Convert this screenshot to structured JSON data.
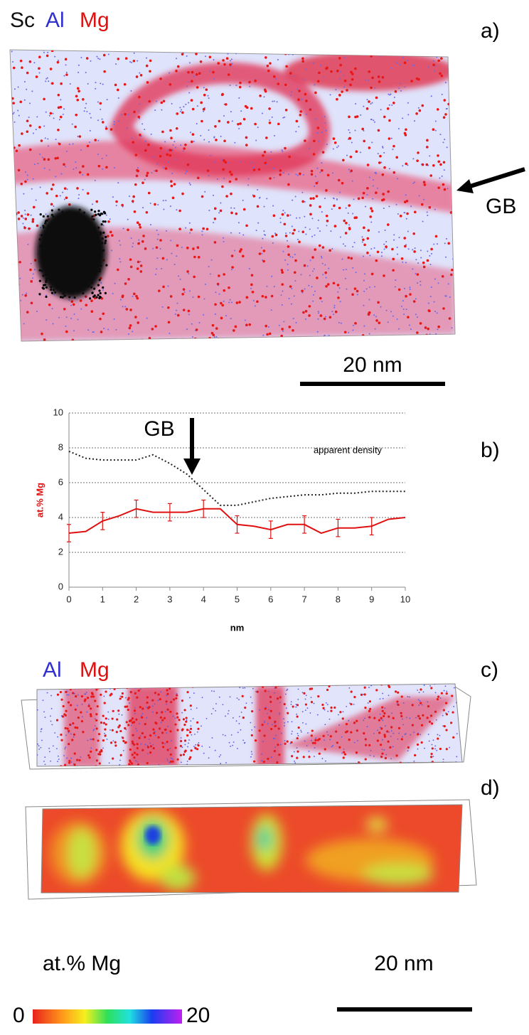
{
  "figure": {
    "panel_a": {
      "label": "a)",
      "legend": [
        "Sc",
        "Al",
        "Mg"
      ],
      "marker": "GB",
      "scale": "20 nm"
    },
    "panel_c": {
      "label": "c)",
      "legend": [
        "Al",
        "Mg"
      ]
    },
    "panel_d": {
      "label": "d)"
    },
    "colorbar": {
      "title": "at.% Mg",
      "min": "0",
      "max": "20",
      "scale": "20 nm"
    }
  },
  "chart_data": {
    "type": "line",
    "label": "b)",
    "annotation": "GB",
    "y_label": "at.% Mg",
    "x_label": "nm",
    "x": [
      0,
      0.5,
      1,
      1.5,
      2,
      2.5,
      3,
      3.5,
      4,
      4.5,
      5,
      5.5,
      6,
      6.5,
      7,
      7.5,
      8,
      8.5,
      9,
      9.5,
      10
    ],
    "series": [
      {
        "color": "#e01010",
        "style": "solid",
        "values": [
          3.1,
          3.2,
          3.8,
          4.1,
          4.5,
          4.3,
          4.3,
          4.3,
          4.5,
          4.5,
          3.6,
          3.5,
          3.3,
          3.6,
          3.6,
          3.1,
          3.4,
          3.4,
          3.5,
          3.9,
          4.0
        ],
        "errors": [
          0.5,
          null,
          0.5,
          null,
          0.5,
          null,
          0.5,
          null,
          0.5,
          null,
          0.5,
          null,
          0.5,
          null,
          0.5,
          null,
          0.5,
          null,
          0.5,
          null,
          null
        ]
      },
      {
        "name": "apparent density",
        "color": "#222222",
        "style": "dotted",
        "values": [
          7.8,
          7.4,
          7.3,
          7.3,
          7.3,
          7.6,
          7.1,
          6.5,
          5.6,
          4.7,
          4.7,
          4.9,
          5.1,
          5.2,
          5.3,
          5.3,
          5.4,
          5.4,
          5.5,
          5.5,
          5.5
        ]
      }
    ],
    "xlim": [
      0,
      10
    ],
    "ylim": [
      0,
      10
    ],
    "xticks": [
      0,
      1,
      2,
      3,
      4,
      5,
      6,
      7,
      8,
      9,
      10
    ],
    "yticks": [
      0,
      2,
      4,
      6,
      8,
      10
    ],
    "grid": true
  }
}
